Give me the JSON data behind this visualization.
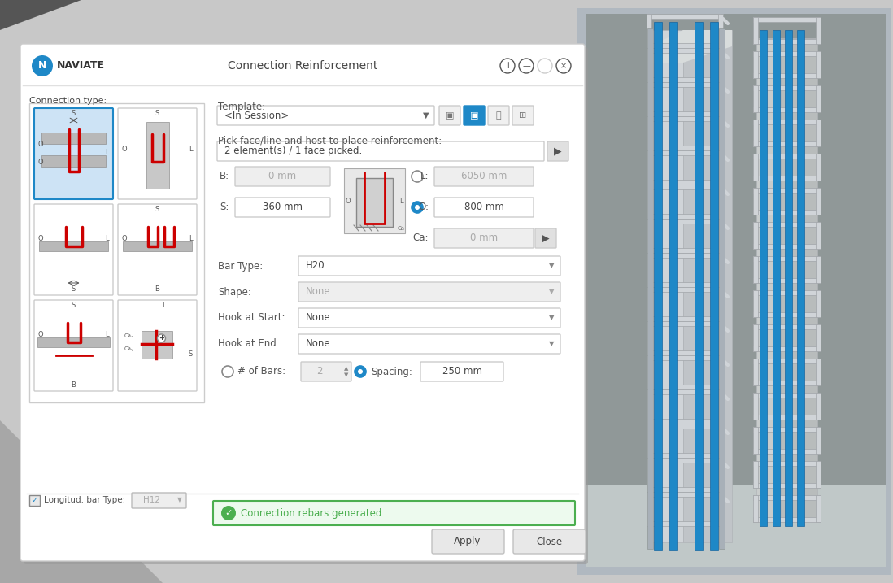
{
  "bg_color": "#c8c8c8",
  "title_text": "Connection Reinforcement",
  "brand_text": "NAVIATE",
  "conn_type_label": "Connection type:",
  "template_label": "Template:",
  "template_value": "<In Session>",
  "pick_label": "Pick face/line and host to place reinforcement:",
  "pick_value": "2 element(s) / 1 face picked.",
  "B_label": "B:",
  "B_value": "0 mm",
  "S_label": "S:",
  "S_value": "360 mm",
  "L_label": "L:",
  "L_value": "6050 mm",
  "O_label": "O:",
  "O_value": "800 mm",
  "Ca_label": "Ca:",
  "Ca_value": "0 mm",
  "bar_type_label": "Bar Type:",
  "bar_type_value": "H20",
  "shape_label": "Shape:",
  "shape_value": "None",
  "hook_start_label": "Hook at Start:",
  "hook_start_value": "None",
  "hook_end_label": "Hook at End:",
  "hook_end_value": "None",
  "longit_label": "Longitud. bar Type:",
  "longit_value": "H12",
  "bars_label": "# of Bars:",
  "bars_value": "2",
  "spacing_label": "Spacing:",
  "spacing_value": "250 mm",
  "status_text": "Connection rebars generated.",
  "apply_text": "Apply",
  "close_text": "Close",
  "accent_blue": "#1e88c7",
  "light_blue_bg": "#cde3f5",
  "green_check": "#4caf50",
  "green_bg": "#edfaee",
  "green_border": "#4caf50",
  "red_color": "#cc0000",
  "gray_text": "#888888",
  "dark_text": "#333333",
  "disabled_bg": "#eeeeee",
  "disabled_text": "#aaaaaa",
  "thumb_bg": "#f0f0f0",
  "thumb_border": "#cccccc",
  "dialog_shadow": "#999999"
}
